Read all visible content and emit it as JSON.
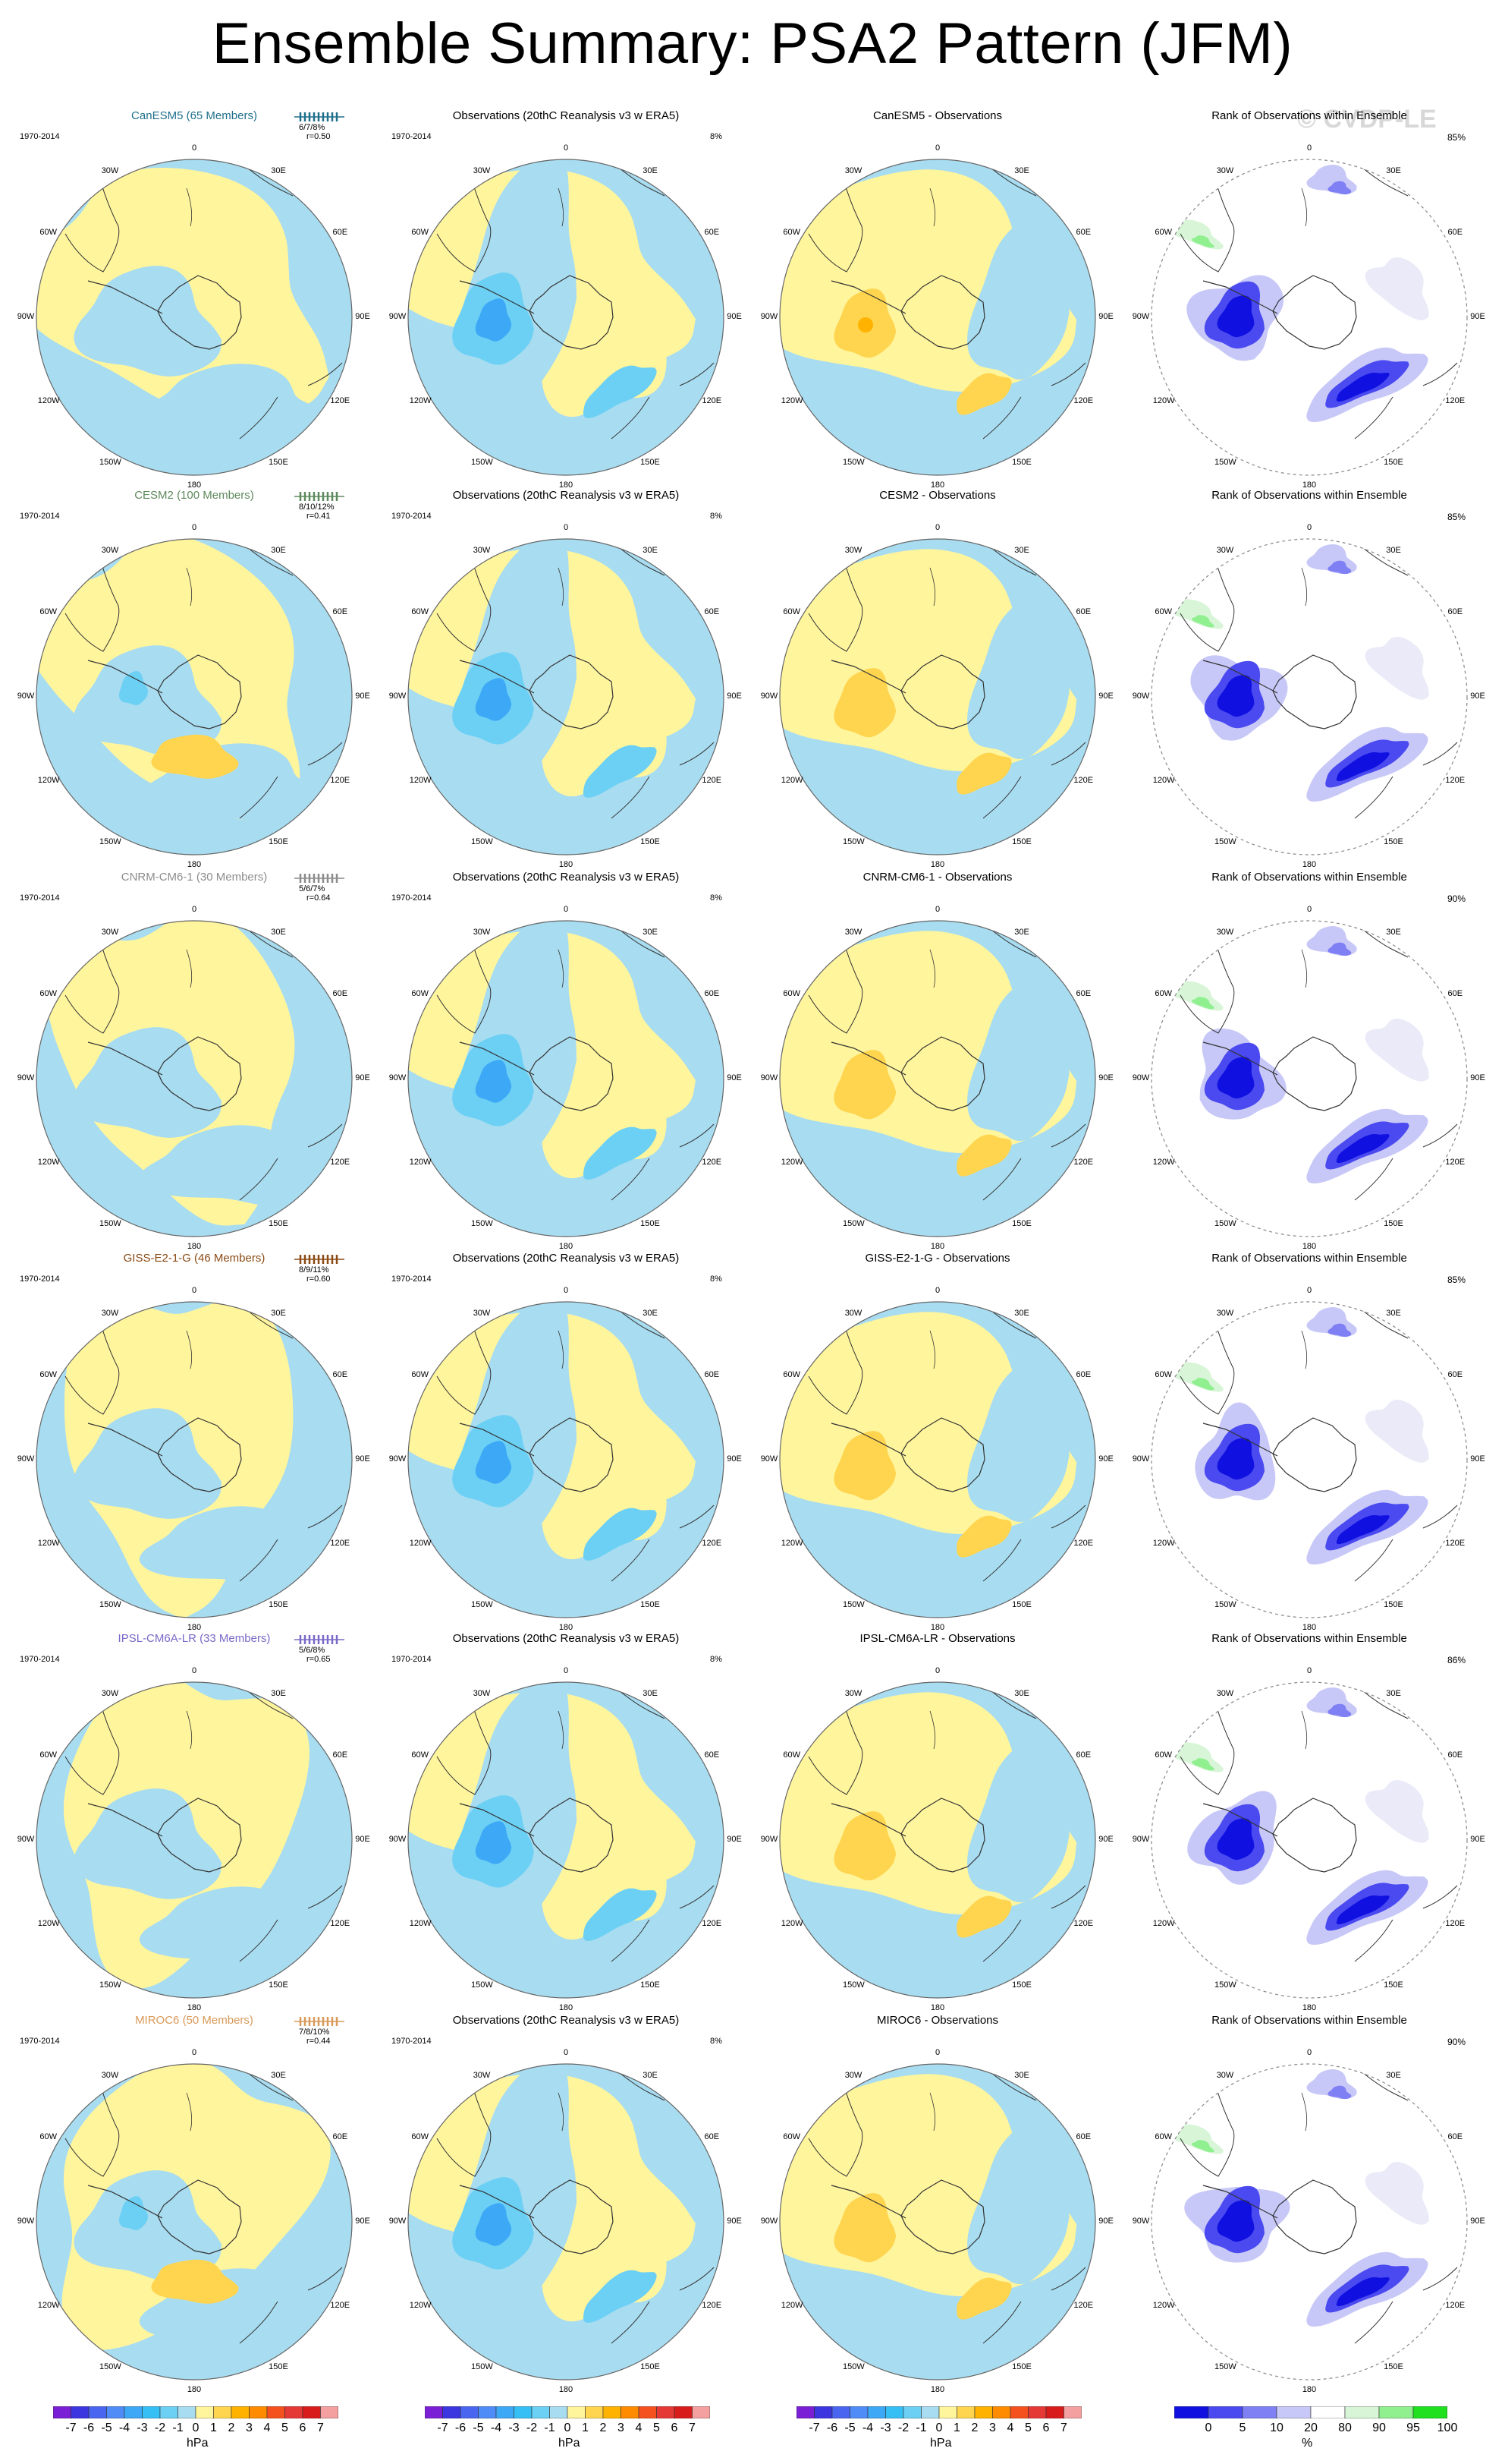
{
  "figure_title": "Ensemble Summary: PSA2 Pattern (JFM)",
  "watermark": "© CVDP-LE",
  "period": "1970-2014",
  "obs_title": "Observations (20thC Reanalysis v3 w ERA5)",
  "obs_pct": "8%",
  "rank_title": "Rank of Observations within Ensemble",
  "lon_labels": [
    "0",
    "30E",
    "60E",
    "90E",
    "120E",
    "150E",
    "180",
    "150W",
    "120W",
    "90W",
    "60W",
    "30W"
  ],
  "rows": [
    {
      "model": "CanESM5",
      "members_label": "CanESM5 (65 Members)",
      "color": "#1f6f8b",
      "stats": "6/7/8%",
      "r": "r=0.50",
      "diff_title": "CanESM5 - Observations",
      "rank_pct": "85%"
    },
    {
      "model": "CESM2",
      "members_label": "CESM2 (100 Members)",
      "color": "#5d8a5d",
      "stats": "8/10/12%",
      "r": "r=0.41",
      "diff_title": "CESM2 - Observations",
      "rank_pct": "85%"
    },
    {
      "model": "CNRM-CM6-1",
      "members_label": "CNRM-CM6-1 (30 Members)",
      "color": "#8c8c8c",
      "stats": "5/6/7%",
      "r": "r=0.64",
      "diff_title": "CNRM-CM6-1 - Observations",
      "rank_pct": "90%"
    },
    {
      "model": "GISS-E2-1-G",
      "members_label": "GISS-E2-1-G (46 Members)",
      "color": "#8b4a14",
      "stats": "8/9/11%",
      "r": "r=0.60",
      "diff_title": "GISS-E2-1-G - Observations",
      "rank_pct": "85%"
    },
    {
      "model": "IPSL-CM6A-LR",
      "members_label": "IPSL-CM6A-LR (33 Members)",
      "color": "#7b68c8",
      "stats": "5/6/8%",
      "r": "r=0.65",
      "diff_title": "IPSL-CM6A-LR - Observations",
      "rank_pct": "86%"
    },
    {
      "model": "MIROC6",
      "members_label": "MIROC6 (50 Members)",
      "color": "#d89a5a",
      "stats": "7/8/10%",
      "r": "r=0.44",
      "diff_title": "MIROC6 - Observations",
      "rank_pct": "90%"
    }
  ],
  "colorbar_hpa": {
    "labels": [
      "-7",
      "-6",
      "-5",
      "-4",
      "-3",
      "-2",
      "-1",
      "0",
      "1",
      "2",
      "3",
      "4",
      "5",
      "6",
      "7"
    ],
    "colors": [
      "#7a1fd6",
      "#3b36e0",
      "#4a66f0",
      "#4f8cf7",
      "#3da8f5",
      "#36bff5",
      "#6cd0f5",
      "#a8dcf0",
      "#fff59d",
      "#ffd54f",
      "#ffb300",
      "#ff8c00",
      "#f4511e",
      "#e53935",
      "#d81b1b",
      "#f4a0a0"
    ],
    "unit": "hPa"
  },
  "colorbar_rank": {
    "labels": [
      "0",
      "5",
      "10",
      "20",
      "80",
      "90",
      "95",
      "100"
    ],
    "colors": [
      "#1010e0",
      "#4a4af0",
      "#8080f5",
      "#c8c8f8",
      "#ffffff",
      "#d8f5d8",
      "#90f090",
      "#20e020"
    ],
    "unit": "%"
  }
}
